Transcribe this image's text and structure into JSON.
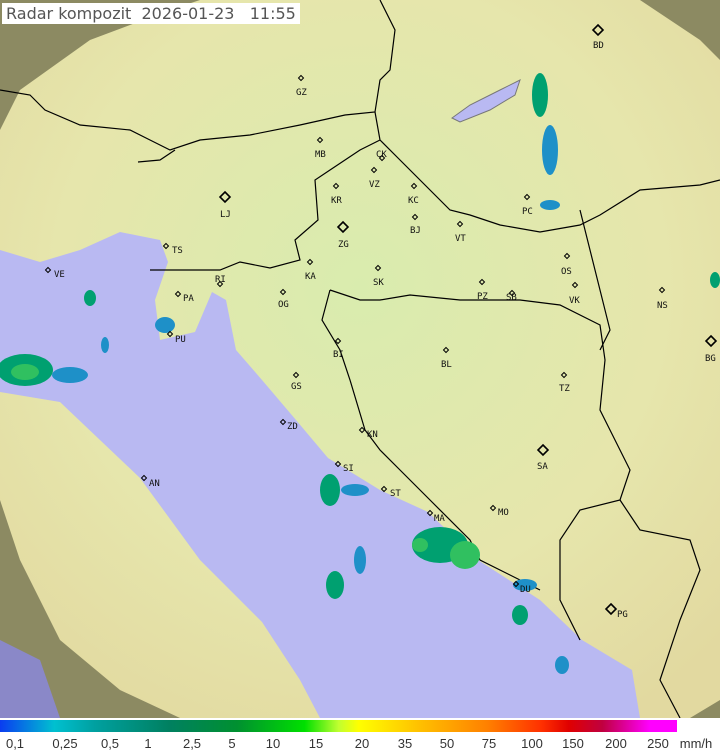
{
  "title": "Radar kompozit  2026-01-23   11:55",
  "legend": {
    "unit": "mm/h",
    "labels": [
      "0,1",
      "0,25",
      "0,5",
      "1",
      "2,5",
      "5",
      "10",
      "15",
      "20",
      "35",
      "50",
      "75",
      "100",
      "150",
      "200",
      "250"
    ]
  },
  "cities": [
    {
      "code": "GZ",
      "marker": "small"
    },
    {
      "code": "BD",
      "marker": "large"
    },
    {
      "code": "MB",
      "marker": "small"
    },
    {
      "code": "CK",
      "marker": "small"
    },
    {
      "code": "VZ",
      "marker": "small"
    },
    {
      "code": "KR",
      "marker": "small"
    },
    {
      "code": "KC",
      "marker": "small"
    },
    {
      "code": "LJ",
      "marker": "large"
    },
    {
      "code": "ZG",
      "marker": "large"
    },
    {
      "code": "BJ",
      "marker": "small"
    },
    {
      "code": "VT",
      "marker": "small"
    },
    {
      "code": "PC",
      "marker": "small"
    },
    {
      "code": "TS",
      "marker": "small"
    },
    {
      "code": "KA",
      "marker": "small"
    },
    {
      "code": "SK",
      "marker": "small"
    },
    {
      "code": "OS",
      "marker": "small"
    },
    {
      "code": "NS",
      "marker": "small"
    },
    {
      "code": "VE",
      "marker": "small"
    },
    {
      "code": "RI",
      "marker": "small"
    },
    {
      "code": "PA",
      "marker": "small"
    },
    {
      "code": "OG",
      "marker": "small"
    },
    {
      "code": "PZ",
      "marker": "small"
    },
    {
      "code": "SB",
      "marker": "small"
    },
    {
      "code": "VK",
      "marker": "small"
    },
    {
      "code": "PU",
      "marker": "small"
    },
    {
      "code": "BG",
      "marker": "large"
    },
    {
      "code": "BI",
      "marker": "small"
    },
    {
      "code": "BL",
      "marker": "small"
    },
    {
      "code": "GS",
      "marker": "small"
    },
    {
      "code": "TZ",
      "marker": "small"
    },
    {
      "code": "ZD",
      "marker": "small"
    },
    {
      "code": "KN",
      "marker": "small"
    },
    {
      "code": "SI",
      "marker": "small"
    },
    {
      "code": "SA",
      "marker": "large"
    },
    {
      "code": "AN",
      "marker": "small"
    },
    {
      "code": "ST",
      "marker": "small"
    },
    {
      "code": "MO",
      "marker": "small"
    },
    {
      "code": "MA",
      "marker": "small"
    },
    {
      "code": "DU",
      "marker": "small"
    },
    {
      "code": "PG",
      "marker": "large"
    }
  ],
  "colors": {
    "land": "#dfe6ad",
    "sea": "#b9b9f2",
    "outside": "#8c8a62",
    "border": "#000000",
    "rain_light": "#1e90c8",
    "rain_mid": "#00a070",
    "rain_heavy": "#30d040"
  }
}
